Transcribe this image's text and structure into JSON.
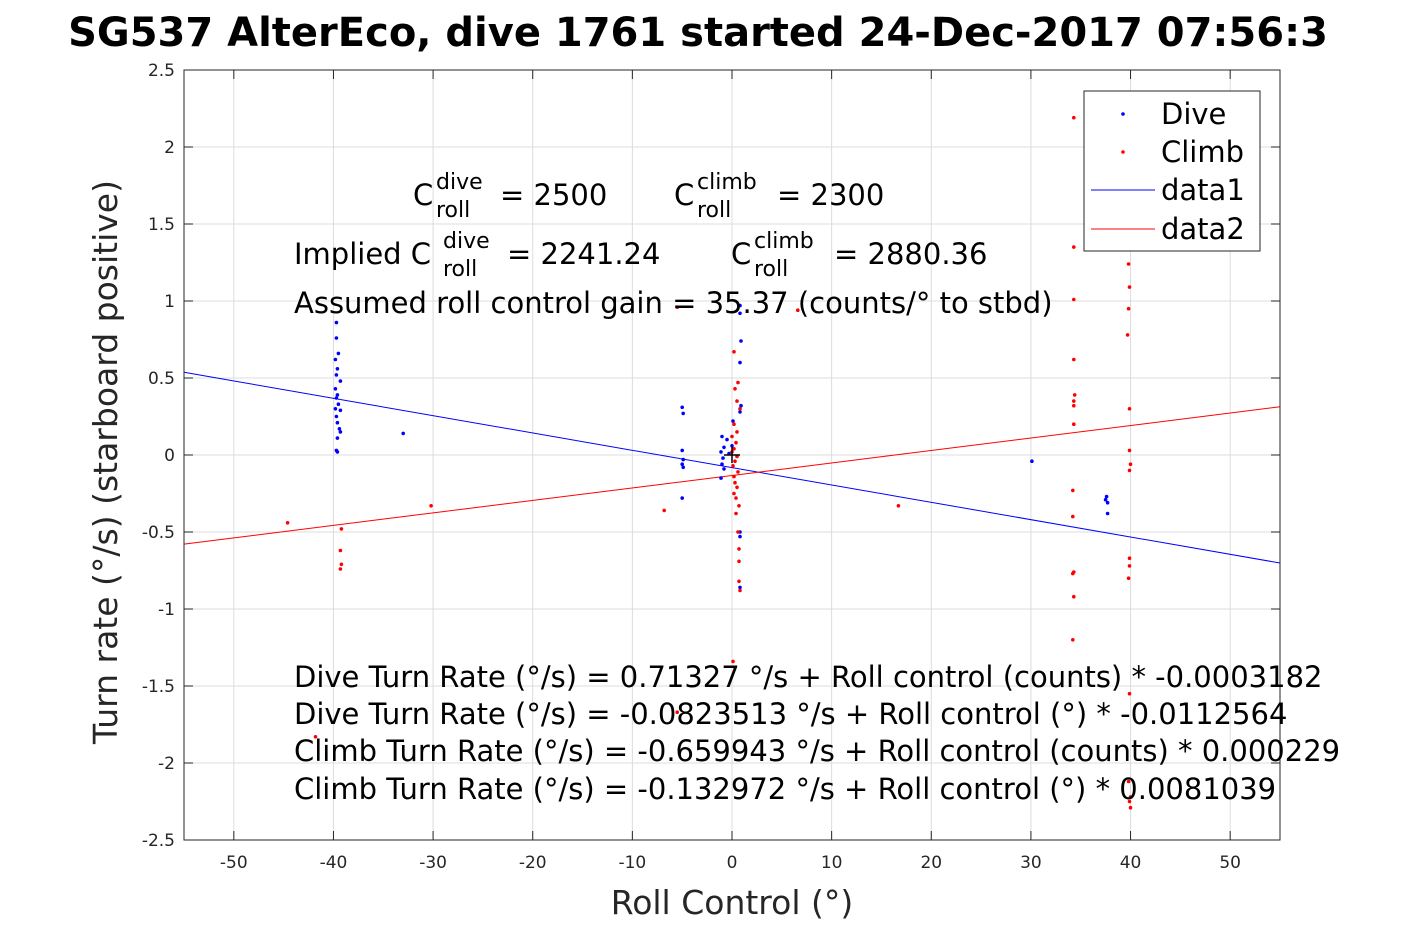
{
  "chart_data": {
    "type": "scatter",
    "title": "SG537 AlterEco, dive 1761 started 24-Dec-2017 07:56:3",
    "xlabel": "Roll Control (°)",
    "ylabel": "Turn rate (°/s) (starboard positive)",
    "xlim": [
      -55,
      55
    ],
    "ylim": [
      -2.5,
      2.5
    ],
    "xticks": [
      -50,
      -40,
      -30,
      -20,
      -10,
      0,
      10,
      20,
      30,
      40,
      50
    ],
    "xtick_labels": [
      "-50",
      "-40",
      "-30",
      "-20",
      "-10",
      "0",
      "10",
      "20",
      "30",
      "40",
      "50"
    ],
    "yticks": [
      -2.5,
      -2,
      -1.5,
      -1,
      -0.5,
      0,
      0.5,
      1,
      1.5,
      2,
      2.5
    ],
    "ytick_labels": [
      "-2.5",
      "-2",
      "-1.5",
      "-1",
      "-0.5",
      "0",
      "0.5",
      "1",
      "1.5",
      "2",
      "2.5"
    ],
    "grid": true,
    "legend_position": "top-right",
    "legend": [
      "Dive",
      "Climb",
      "data1",
      "data2"
    ],
    "colors": {
      "dive": "#0000ff",
      "climb": "#ff0000",
      "axes": "#262626",
      "grid": "#dcdcdc"
    },
    "series": [
      {
        "name": "Dive",
        "mode": "markers",
        "color": "#0000ff",
        "points": [
          [
            -39.7,
            0.86
          ],
          [
            -39.7,
            0.76
          ],
          [
            -39.5,
            0.66
          ],
          [
            -39.8,
            0.62
          ],
          [
            -39.6,
            0.56
          ],
          [
            -39.7,
            0.52
          ],
          [
            -39.3,
            0.48
          ],
          [
            -39.8,
            0.43
          ],
          [
            -39.6,
            0.39
          ],
          [
            -39.7,
            0.37
          ],
          [
            -39.5,
            0.33
          ],
          [
            -39.8,
            0.3
          ],
          [
            -39.3,
            0.29
          ],
          [
            -39.7,
            0.25
          ],
          [
            -39.6,
            0.21
          ],
          [
            -39.4,
            0.17
          ],
          [
            -39.3,
            0.15
          ],
          [
            -39.6,
            0.11
          ],
          [
            -39.7,
            0.03
          ],
          [
            -39.6,
            0.02
          ],
          [
            -33.0,
            0.14
          ],
          [
            -5.0,
            0.31
          ],
          [
            -4.9,
            0.27
          ],
          [
            -5.0,
            0.03
          ],
          [
            -4.9,
            -0.03
          ],
          [
            -5.0,
            -0.06
          ],
          [
            -4.9,
            -0.08
          ],
          [
            -5.0,
            -0.28
          ],
          [
            -1.0,
            0.12
          ],
          [
            -0.8,
            0.05
          ],
          [
            -1.1,
            0.02
          ],
          [
            -0.9,
            -0.02
          ],
          [
            -1.0,
            -0.06
          ],
          [
            -0.8,
            -0.09
          ],
          [
            -1.1,
            -0.15
          ],
          [
            -0.5,
            0.1
          ],
          [
            -0.3,
            0.01
          ],
          [
            0.8,
            0.97
          ],
          [
            0.8,
            0.92
          ],
          [
            0.9,
            0.74
          ],
          [
            0.8,
            0.6
          ],
          [
            0.9,
            0.32
          ],
          [
            0.8,
            0.28
          ],
          [
            0.1,
            0.22
          ],
          [
            0.0,
            0.06
          ],
          [
            0.8,
            -0.5
          ],
          [
            0.8,
            -0.53
          ],
          [
            0.8,
            -0.86
          ],
          [
            30.1,
            -0.04
          ],
          [
            37.6,
            -0.27
          ],
          [
            37.7,
            -0.31
          ],
          [
            37.5,
            -0.29
          ],
          [
            37.7,
            -0.38
          ]
        ]
      },
      {
        "name": "Climb",
        "mode": "markers",
        "color": "#ff0000",
        "points": [
          [
            -44.6,
            -0.44
          ],
          [
            -41.8,
            -1.83
          ],
          [
            -39.2,
            -0.48
          ],
          [
            -39.3,
            -0.62
          ],
          [
            -39.2,
            -0.71
          ],
          [
            -39.3,
            -0.74
          ],
          [
            -30.2,
            -0.33
          ],
          [
            -6.8,
            -0.36
          ],
          [
            -5.5,
            0.96
          ],
          [
            -5.5,
            -1.67
          ],
          [
            16.7,
            -0.33
          ],
          [
            0.2,
            0.67
          ],
          [
            0.6,
            0.47
          ],
          [
            0.3,
            0.43
          ],
          [
            0.5,
            0.35
          ],
          [
            0.8,
            0.3
          ],
          [
            0.2,
            0.2
          ],
          [
            0.5,
            0.15
          ],
          [
            0.0,
            0.12
          ],
          [
            0.4,
            0.08
          ],
          [
            0.2,
            0.04
          ],
          [
            0.0,
            0.02
          ],
          [
            0.5,
            -0.01
          ],
          [
            0.3,
            -0.04
          ],
          [
            0.1,
            -0.07
          ],
          [
            0.6,
            -0.11
          ],
          [
            0.2,
            -0.14
          ],
          [
            0.3,
            -0.18
          ],
          [
            0.5,
            -0.21
          ],
          [
            0.2,
            -0.25
          ],
          [
            0.4,
            -0.28
          ],
          [
            0.7,
            -0.33
          ],
          [
            0.4,
            -0.38
          ],
          [
            0.6,
            -0.5
          ],
          [
            0.7,
            -0.61
          ],
          [
            0.7,
            -0.69
          ],
          [
            0.7,
            -0.82
          ],
          [
            0.8,
            -0.88
          ],
          [
            0.1,
            -1.34
          ],
          [
            0.3,
            -1.38
          ],
          [
            6.6,
            0.94
          ],
          [
            34.3,
            2.19
          ],
          [
            34.3,
            1.35
          ],
          [
            34.3,
            1.01
          ],
          [
            34.3,
            0.62
          ],
          [
            34.4,
            0.39
          ],
          [
            34.3,
            0.35
          ],
          [
            34.3,
            0.32
          ],
          [
            34.3,
            0.2
          ],
          [
            34.2,
            -0.23
          ],
          [
            34.2,
            -0.4
          ],
          [
            34.3,
            -0.76
          ],
          [
            34.2,
            -0.77
          ],
          [
            34.3,
            -0.92
          ],
          [
            34.2,
            -1.2
          ],
          [
            39.8,
            1.24
          ],
          [
            39.9,
            1.09
          ],
          [
            39.8,
            0.95
          ],
          [
            39.7,
            0.78
          ],
          [
            39.9,
            0.3
          ],
          [
            39.9,
            0.03
          ],
          [
            40.0,
            -0.06
          ],
          [
            39.9,
            -0.1
          ],
          [
            39.9,
            -0.67
          ],
          [
            39.9,
            -0.72
          ],
          [
            39.8,
            -0.8
          ],
          [
            39.9,
            -1.55
          ],
          [
            39.8,
            -2.12
          ],
          [
            40.0,
            -2.22
          ],
          [
            39.9,
            -2.25
          ],
          [
            40.0,
            -2.29
          ]
        ]
      },
      {
        "name": "data1",
        "mode": "line",
        "color": "#0000ff",
        "points": [
          [
            -55,
            0.5368
          ],
          [
            55,
            -0.7014
          ]
        ]
      },
      {
        "name": "data2",
        "mode": "line",
        "color": "#ff0000",
        "points": [
          [
            -55,
            -0.5787
          ],
          [
            55,
            0.3127
          ]
        ]
      }
    ],
    "annotations": {
      "c_dive_prefix": "C",
      "c_dive_sup": "dive",
      "c_dive_sub": "roll",
      "c_dive_value": "= 2500",
      "c_climb_prefix": "C",
      "c_climb_sup": "climb",
      "c_climb_sub": "roll",
      "c_climb_value": "= 2300",
      "implied_prefix": "Implied C",
      "implied_dive_sup": "dive",
      "implied_dive_sub": "roll",
      "implied_dive_value": "= 2241.24",
      "implied_climb_prefix": "C",
      "implied_climb_sup": "climb",
      "implied_climb_sub": "roll",
      "implied_climb_value": "= 2880.36",
      "gain": "Assumed roll control gain = 35.37 (counts/° to stbd)",
      "fit1": "Dive Turn Rate (°/s) = 0.71327 °/s + Roll control (counts) * -0.0003182",
      "fit2": "Dive Turn Rate (°/s) = -0.0823513 °/s + Roll control (°) * -0.0112564",
      "fit3": "Climb Turn Rate (°/s) = -0.659943 °/s + Roll control (counts) * 0.000229",
      "fit4": "Climb Turn Rate (°/s) = -0.132972 °/s + Roll control (°) * 0.0081039"
    }
  }
}
